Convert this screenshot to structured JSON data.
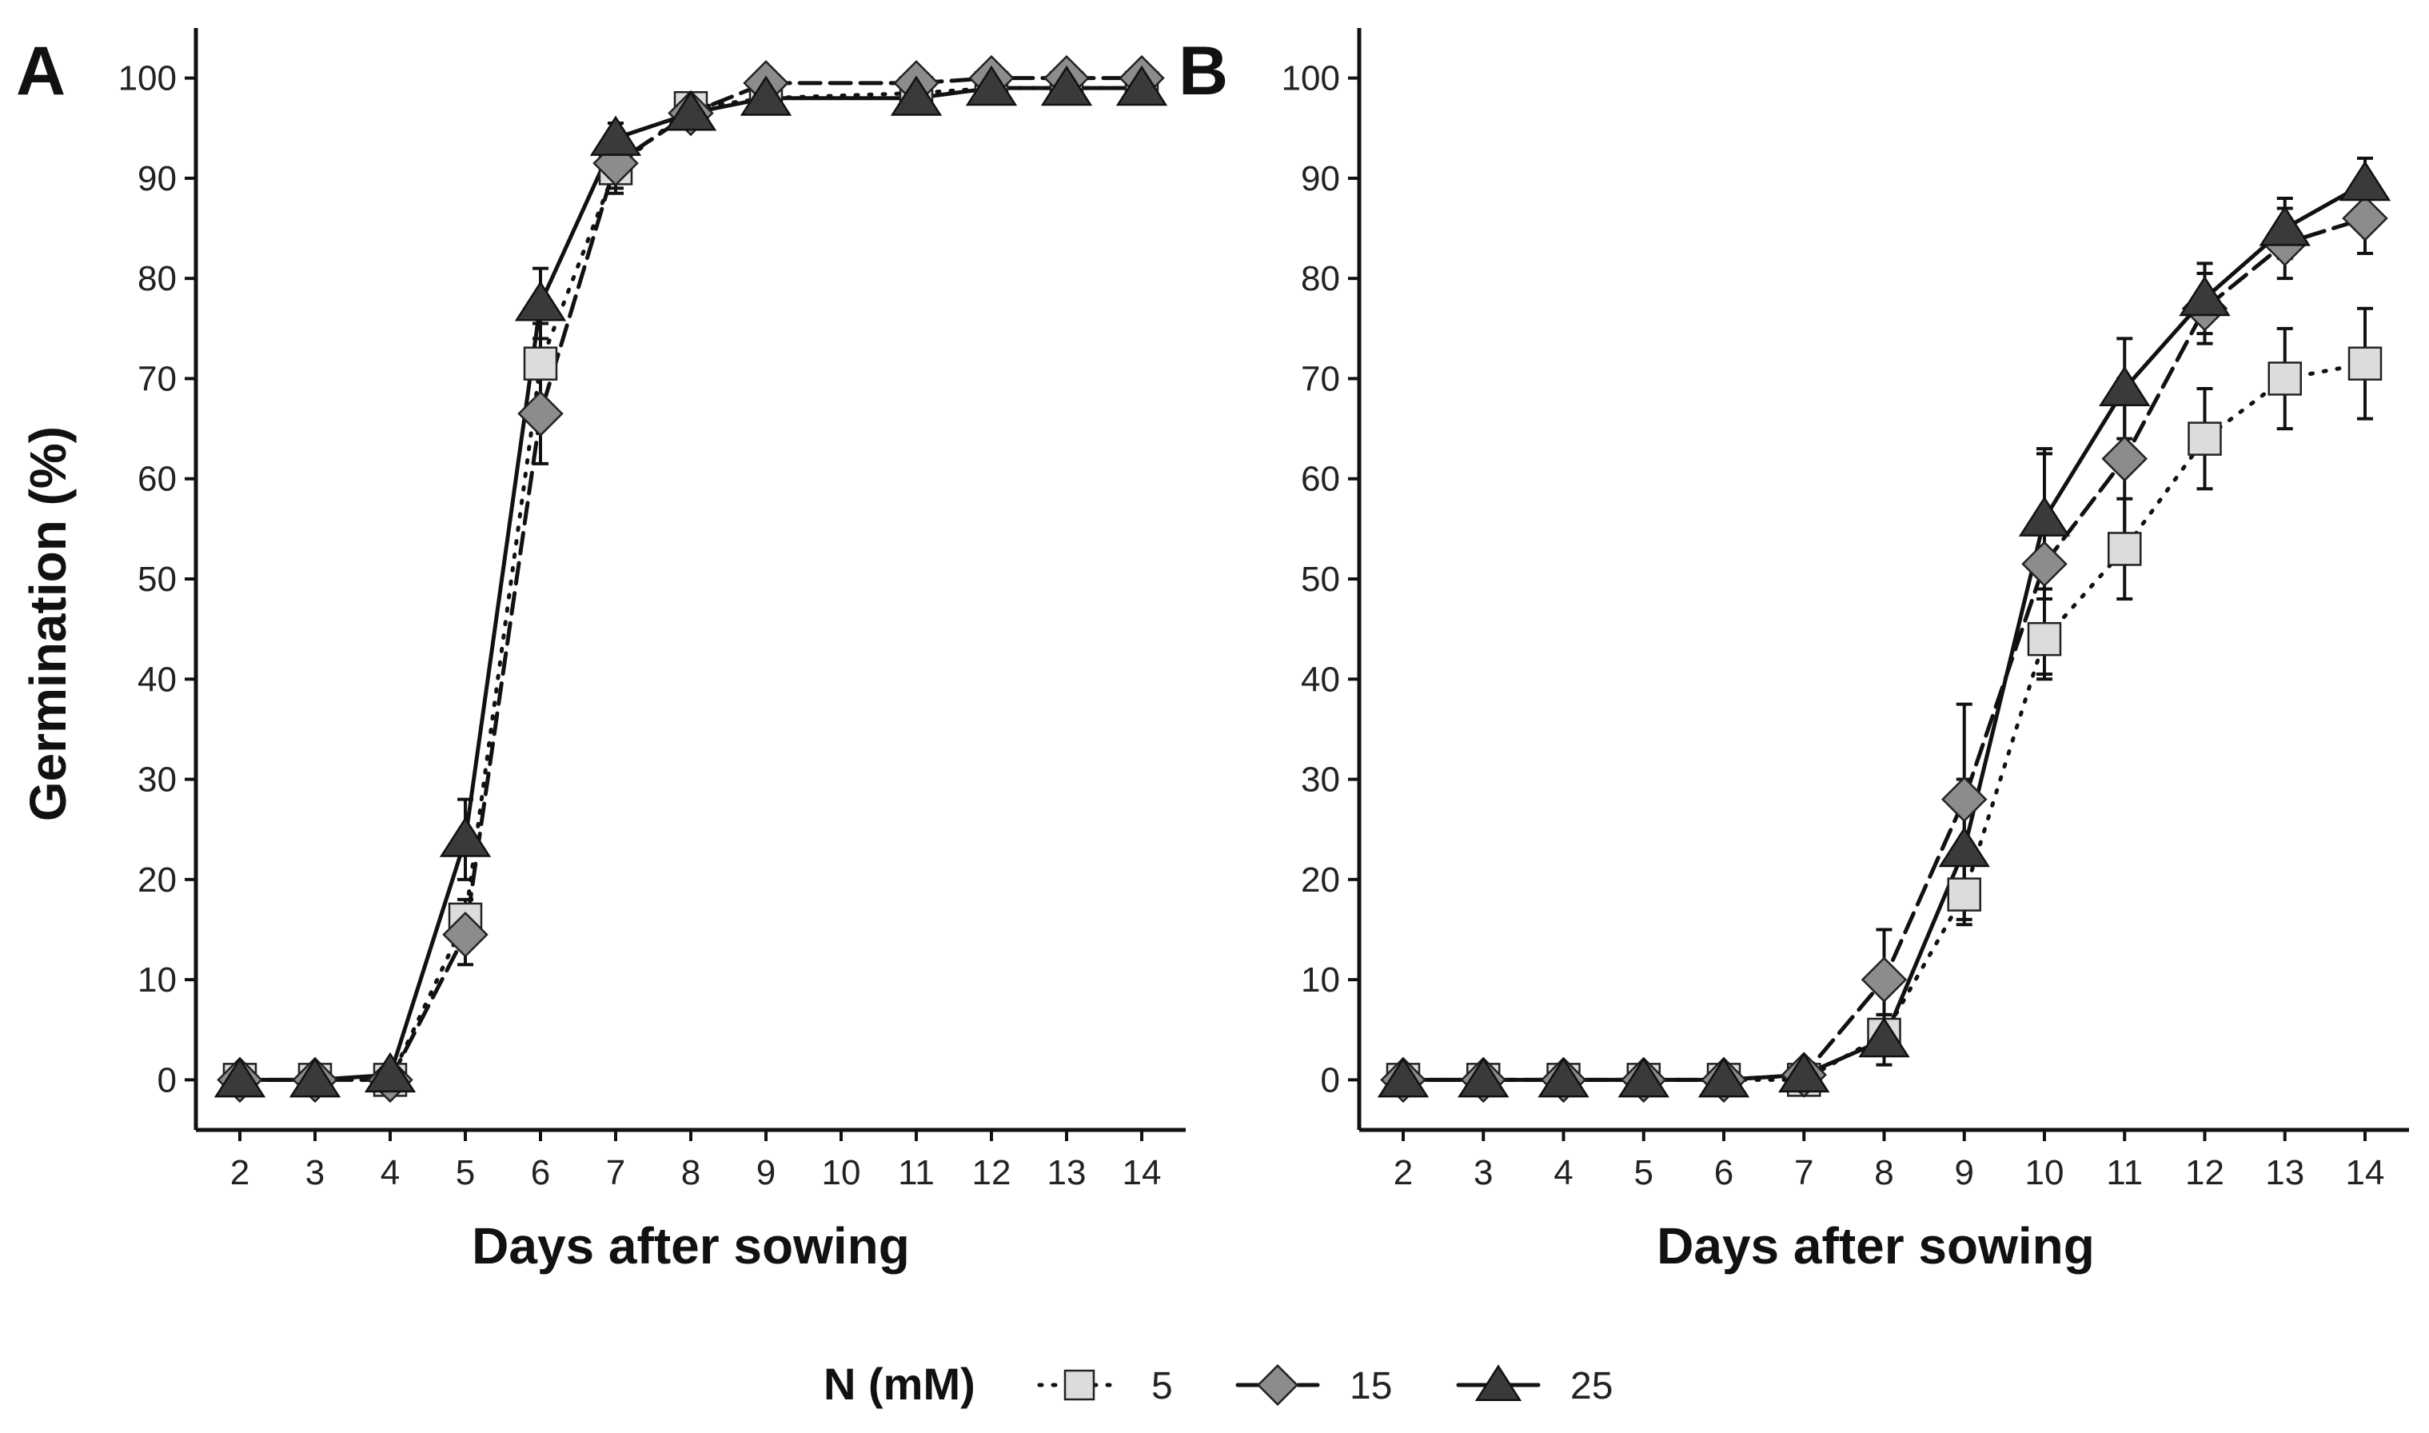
{
  "chart_data": [
    {
      "panel": "A",
      "type": "line",
      "xlabel": "Days after sowing",
      "ylabel": "Germination (%)",
      "x": [
        2,
        3,
        4,
        5,
        6,
        7,
        8,
        9,
        10,
        11,
        12,
        13,
        14
      ],
      "xticks": [
        "2",
        "3",
        "4",
        "5",
        "6",
        "7",
        "8",
        "9",
        "10",
        "11",
        "12",
        "13",
        "14"
      ],
      "yticks": [
        "0",
        "10",
        "20",
        "30",
        "40",
        "50",
        "60",
        "70",
        "80",
        "90",
        "100"
      ],
      "ylim": [
        -5,
        105
      ],
      "series": [
        {
          "name": "5",
          "x": [
            2,
            3,
            4,
            5,
            6,
            7,
            8,
            9,
            11,
            12,
            13,
            14
          ],
          "values": [
            0,
            0,
            0,
            16,
            71.5,
            91,
            97,
            98,
            98.5,
            99,
            99,
            99
          ],
          "err": [
            0,
            0,
            0,
            2,
            4,
            2,
            1.5,
            1,
            1,
            0.5,
            0.5,
            0.5
          ]
        },
        {
          "name": "15",
          "x": [
            2,
            3,
            4,
            5,
            6,
            7,
            8,
            9,
            11,
            12,
            13,
            14
          ],
          "values": [
            0,
            0,
            0,
            14.5,
            66.5,
            91.5,
            96.5,
            99.5,
            99.5,
            100,
            100,
            100
          ],
          "err": [
            0,
            0,
            0,
            3,
            5,
            3,
            1.5,
            0.5,
            0.5,
            0,
            0,
            0
          ]
        },
        {
          "name": "25",
          "x": [
            2,
            3,
            4,
            5,
            6,
            7,
            8,
            9,
            11,
            12,
            13,
            14
          ],
          "values": [
            0,
            0,
            0.5,
            24,
            77.5,
            94,
            96.5,
            98,
            98,
            99,
            99,
            99
          ],
          "err": [
            0,
            0,
            0.5,
            4,
            3.5,
            1.5,
            1.5,
            1,
            1,
            0.5,
            0.5,
            0.5
          ]
        }
      ]
    },
    {
      "panel": "B",
      "type": "line",
      "xlabel": "Days after sowing",
      "ylabel": "",
      "x": [
        2,
        3,
        4,
        5,
        6,
        7,
        8,
        9,
        10,
        11,
        12,
        13,
        14
      ],
      "xticks": [
        "2",
        "3",
        "4",
        "5",
        "6",
        "7",
        "8",
        "9",
        "10",
        "11",
        "12",
        "13",
        "14"
      ],
      "yticks": [
        "0",
        "10",
        "20",
        "30",
        "40",
        "50",
        "60",
        "70",
        "80",
        "90",
        "100"
      ],
      "ylim": [
        -5,
        105
      ],
      "series": [
        {
          "name": "5",
          "x": [
            2,
            3,
            4,
            5,
            6,
            7,
            8,
            9,
            10,
            11,
            12,
            13,
            14
          ],
          "values": [
            0,
            0,
            0,
            0,
            0,
            0,
            4.5,
            18.5,
            44,
            53,
            64,
            70,
            71.5
          ],
          "err": [
            0,
            0,
            0,
            0,
            0,
            0.5,
            2,
            3,
            4,
            5,
            5,
            5,
            5.5
          ]
        },
        {
          "name": "15",
          "x": [
            2,
            3,
            4,
            5,
            6,
            7,
            8,
            9,
            10,
            11,
            12,
            13,
            14
          ],
          "values": [
            0,
            0,
            0,
            0,
            0,
            0.5,
            10,
            28,
            51.5,
            62,
            77,
            83.5,
            86
          ],
          "err": [
            0,
            0,
            0,
            0,
            0,
            0.5,
            5,
            9.5,
            11,
            8,
            3.5,
            3.5,
            3.5
          ]
        },
        {
          "name": "25",
          "x": [
            2,
            3,
            4,
            5,
            6,
            7,
            8,
            9,
            10,
            11,
            12,
            13,
            14
          ],
          "values": [
            0,
            0,
            0,
            0,
            0,
            0.5,
            4,
            23,
            56,
            69,
            78,
            85,
            89.5
          ],
          "err": [
            0,
            0,
            0,
            0,
            0,
            0.5,
            2.5,
            7,
            7,
            5,
            3.5,
            3,
            2.5
          ]
        }
      ]
    }
  ],
  "legend": {
    "title": "N (mM)",
    "items": [
      {
        "label": "5",
        "marker": "square",
        "dash": "dotted",
        "color": "#dcdcdc"
      },
      {
        "label": "15",
        "marker": "diamond",
        "dash": "dashed",
        "color": "#8c8c8c"
      },
      {
        "label": "25",
        "marker": "triangle",
        "dash": "solid",
        "color": "#3a3a3a"
      }
    ]
  },
  "colors": {
    "series_5": "#dcdcdc",
    "series_15": "#8c8c8c",
    "series_25": "#3a3a3a",
    "axis": "#111111"
  }
}
